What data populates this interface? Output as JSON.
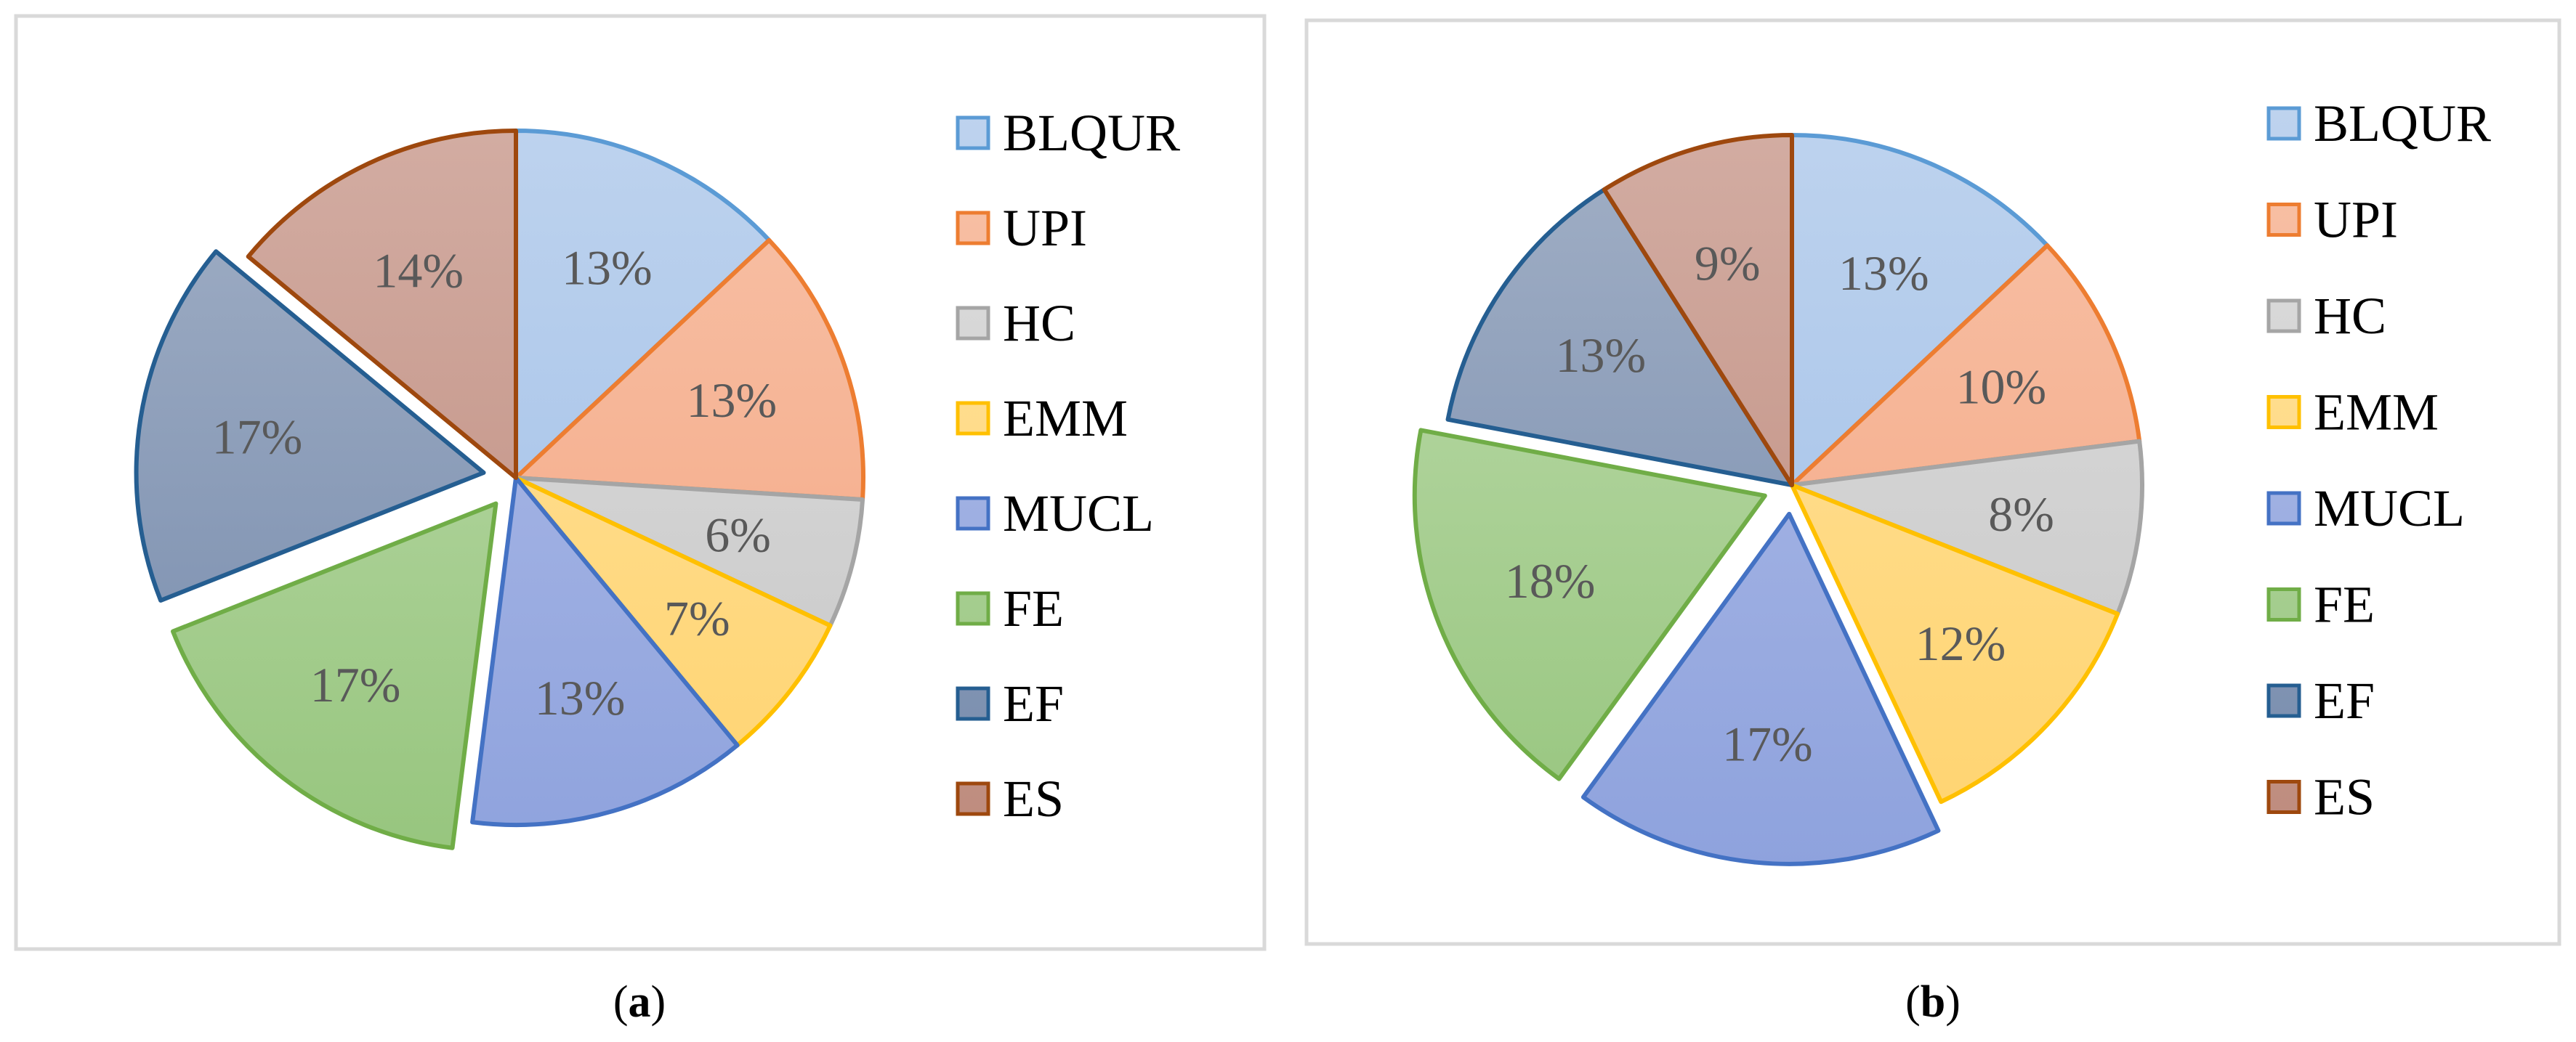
{
  "chart_data": [
    {
      "type": "pie",
      "caption_open": "(",
      "caption_letter": "a",
      "caption_close": ")",
      "categories": [
        "BLQUR",
        "UPI",
        "HC",
        "EMM",
        "MUCL",
        "FE",
        "EF",
        "ES"
      ],
      "values": [
        13,
        13,
        6,
        7,
        13,
        17,
        17,
        14
      ],
      "labels": [
        "13%",
        "13%",
        "6%",
        "7%",
        "13%",
        "17%",
        "17%",
        "14%"
      ],
      "exploded": [
        "FE",
        "EF"
      ],
      "label_font": "serif",
      "legend_position": "right"
    },
    {
      "type": "pie",
      "caption_open": "(",
      "caption_letter": "b",
      "caption_close": ")",
      "categories": [
        "BLQUR",
        "UPI",
        "HC",
        "EMM",
        "MUCL",
        "FE",
        "EF",
        "ES"
      ],
      "values": [
        13,
        10,
        8,
        12,
        17,
        18,
        13,
        9
      ],
      "labels": [
        "13%",
        "10%",
        "8%",
        "12%",
        "17%",
        "18%",
        "13%",
        "9%"
      ],
      "exploded": [
        "MUCL",
        "FE"
      ],
      "label_font": "sans",
      "legend_position": "right"
    }
  ],
  "series_colors": {
    "BLQUR": {
      "fill_top": "#bed3ee",
      "fill_bottom": "#9dbde7",
      "edge": "#5b9bd5"
    },
    "UPI": {
      "fill_top": "#f8c2a8",
      "fill_bottom": "#f3a37e",
      "edge": "#ed7d31"
    },
    "HC": {
      "fill_top": "#dedede",
      "fill_bottom": "#c6c6c6",
      "edge": "#a5a5a5"
    },
    "EMM": {
      "fill_top": "#ffe3a0",
      "fill_bottom": "#ffd36e",
      "edge": "#ffc000"
    },
    "MUCL": {
      "fill_top": "#b1bee8",
      "fill_bottom": "#8ea2dd",
      "edge": "#4472c4"
    },
    "FE": {
      "fill_top": "#bfdcae",
      "fill_bottom": "#96c57d",
      "edge": "#70ad47"
    },
    "EF": {
      "fill_top": "#a2b0c6",
      "fill_bottom": "#7489ab",
      "edge": "#255e91"
    },
    "ES": {
      "fill_top": "#d3ada3",
      "fill_bottom": "#bd8a7c",
      "edge": "#9e480e"
    }
  },
  "label_color": "#595959"
}
